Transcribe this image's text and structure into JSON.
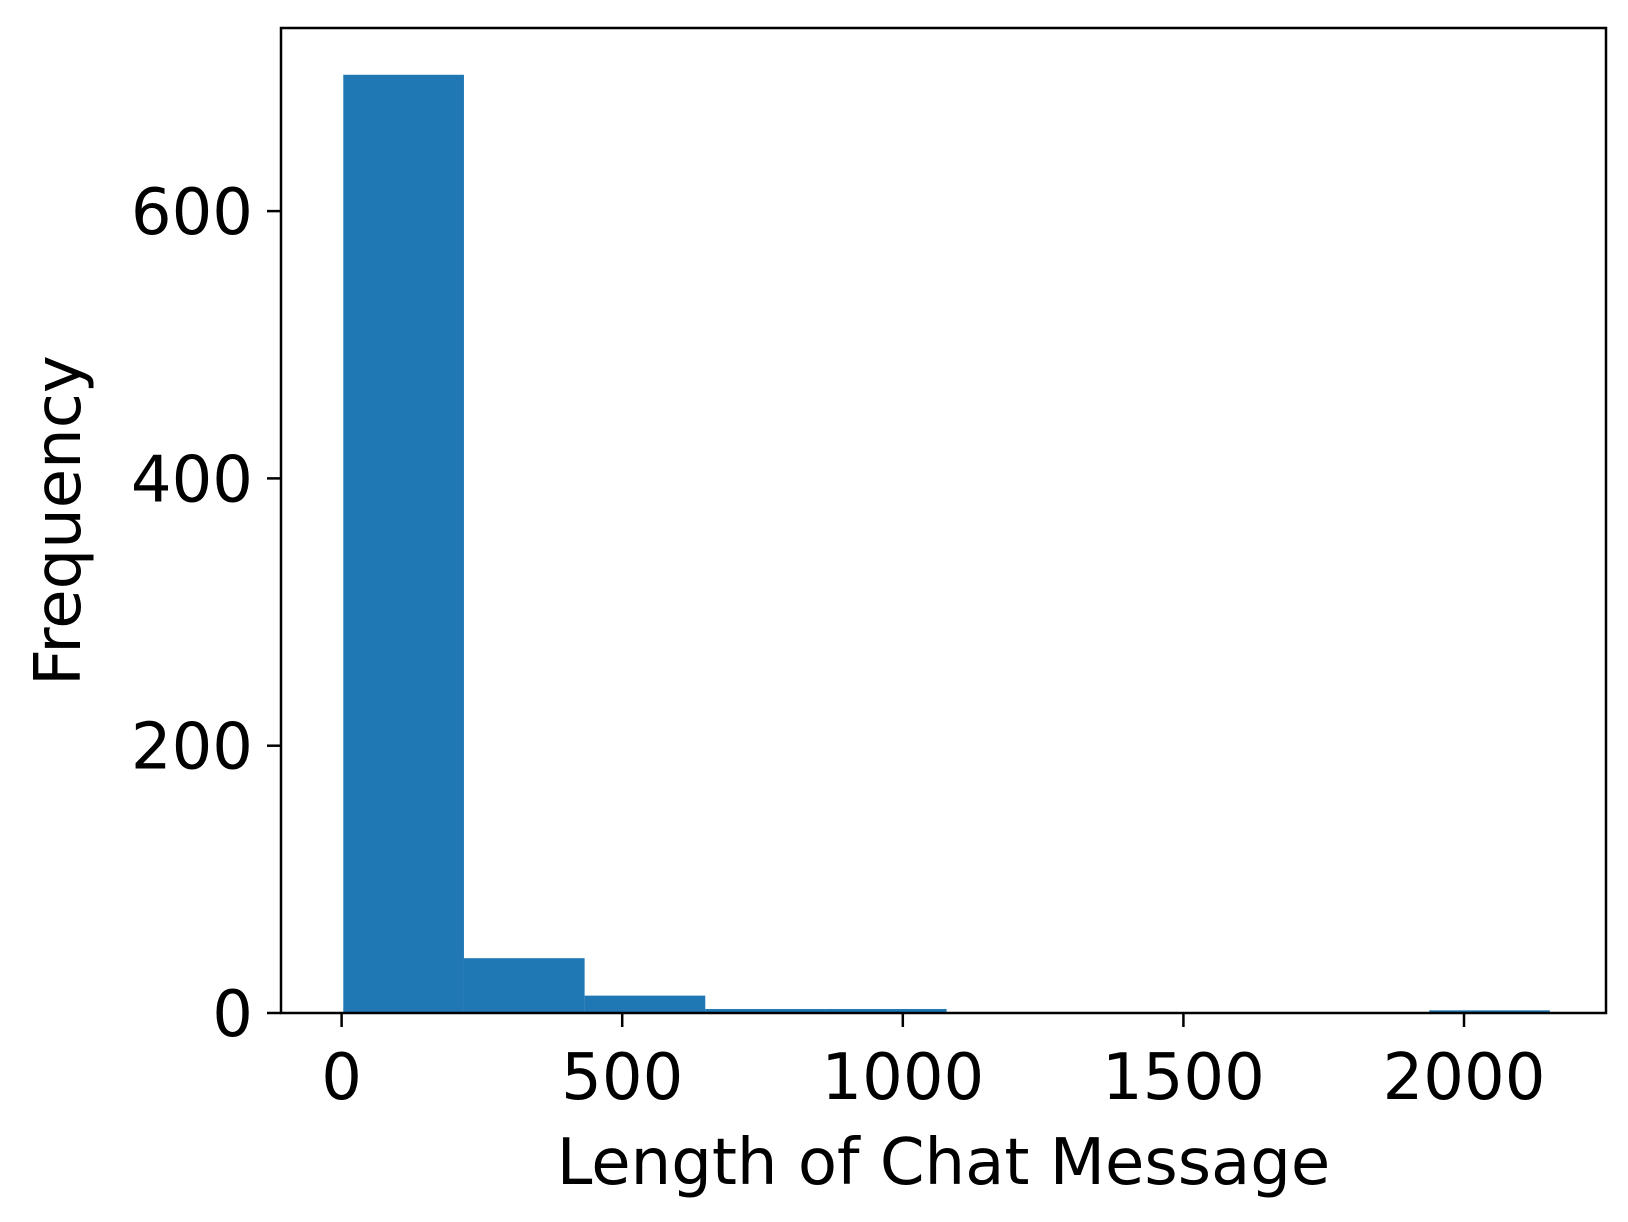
{
  "chart_data": {
    "type": "bar",
    "histogram": true,
    "title": "",
    "xlabel": "Length of Chat Message",
    "ylabel": "Frequency",
    "xlim": [
      -108,
      2253
    ],
    "ylim": [
      0,
      737
    ],
    "bin_edges": [
      3,
      218,
      433,
      648,
      863,
      1078,
      1293,
      1508,
      1723,
      1938,
      2153
    ],
    "values": [
      702,
      41,
      13,
      3,
      3,
      0,
      0,
      0,
      0,
      2
    ],
    "xticks": [
      0,
      500,
      1000,
      1500,
      2000
    ],
    "yticks": [
      0,
      200,
      400,
      600
    ],
    "xtick_labels": [
      "0",
      "500",
      "1000",
      "1500",
      "2000"
    ],
    "ytick_labels": [
      "0",
      "200",
      "400",
      "600"
    ],
    "grid": false,
    "bar_color": "#1f77b4"
  }
}
